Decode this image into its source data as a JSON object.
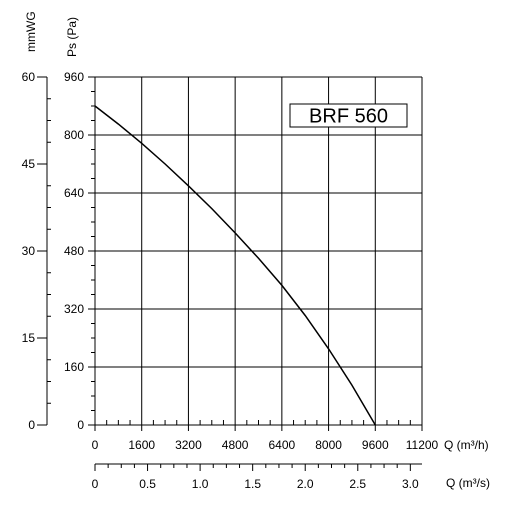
{
  "chart_data": {
    "type": "line",
    "model_label": "BRF 560",
    "left_axis_label": "mmWG",
    "y_label": "Ps (Pa)",
    "x_label": "Q (m³/h)",
    "x2_label": "Q (m³/s)",
    "x_ticks": [
      0,
      1600,
      3200,
      4800,
      6400,
      8000,
      9600,
      11200
    ],
    "x_range": [
      0,
      11200
    ],
    "y_ticks": [
      0,
      160,
      320,
      480,
      640,
      800,
      960
    ],
    "y_range": [
      0,
      960
    ],
    "left_ticks": [
      0,
      15,
      30,
      45,
      60
    ],
    "left_range": [
      0,
      60
    ],
    "x2_ticks": [
      "0",
      "0.5",
      "1.0",
      "1.5",
      "2.0",
      "2.5",
      "3.0"
    ],
    "x2_tick_values": [
      0,
      0.5,
      1.0,
      1.5,
      2.0,
      2.5,
      3.0
    ],
    "x2_range_m3s": [
      0,
      3.111
    ],
    "grid": true,
    "series": [
      {
        "x": [
          0,
          800,
          1600,
          2400,
          3200,
          4000,
          4800,
          5600,
          6400,
          7200,
          8000,
          8800,
          9600
        ],
        "y": [
          880,
          830,
          777,
          720,
          660,
          597,
          530,
          460,
          385,
          302,
          210,
          110,
          0
        ]
      }
    ]
  },
  "colors": {
    "line": "#000000",
    "grid": "#000000",
    "background": "#ffffff"
  }
}
